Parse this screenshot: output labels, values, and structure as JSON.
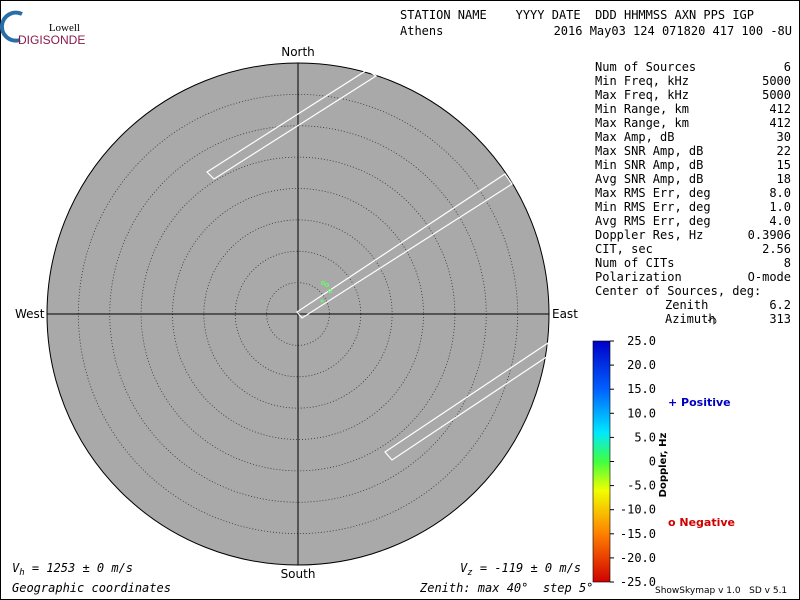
{
  "logo": {
    "top": "Lowell",
    "bottom": "DIGISONDE"
  },
  "header": {
    "fields": "STATION NAME    YYYY DATE  DDD HHMMSS AXN PPS IGP",
    "station": "Athens",
    "values": "2016 May03 124 071820 417 100 -8U"
  },
  "directions": {
    "north": "North",
    "south": "South",
    "west": "West",
    "east": "East"
  },
  "stats": {
    "rows": [
      [
        "Num of Sources",
        "6"
      ],
      [
        "Min Freq, kHz",
        "5000"
      ],
      [
        "Max Freq, kHz",
        "5000"
      ],
      [
        "Min Range, km",
        "412"
      ],
      [
        "Max Range, km",
        "412"
      ],
      [
        "Max Amp, dB",
        "30"
      ],
      [
        "Max SNR Amp, dB",
        "22"
      ],
      [
        "Min SNR Amp, dB",
        "15"
      ],
      [
        "Avg SNR Amp, dB",
        "18"
      ],
      [
        "Max RMS Err, deg",
        "8.0"
      ],
      [
        "Min RMS Err, deg",
        "1.0"
      ],
      [
        "Avg RMS Err, deg",
        "4.0"
      ],
      [
        "Doppler Res, Hz",
        "0.3906"
      ],
      [
        "CIT, sec",
        "2.56"
      ],
      [
        "Num of CITs",
        "8"
      ],
      [
        "Polarization",
        "O-mode"
      ]
    ],
    "center_heading": "Center of Sources, deg:",
    "center_rows": [
      [
        "Zenith",
        "6.2"
      ],
      [
        "Azimuth",
        "313"
      ]
    ]
  },
  "colorbar": {
    "title": "Doppler, Hz",
    "labels": [
      "25.0",
      "20.0",
      "15.0",
      "10.0",
      "5.0",
      "0",
      "-5.0",
      "-10.0",
      "-15.0",
      "-20.0",
      "-25.0"
    ]
  },
  "legend": {
    "positive": "+ Positive",
    "negative": "o Negative"
  },
  "footer": {
    "vh": {
      "symbol": "V",
      "subscript": "h",
      "text": " = 1253 ± 0 m/s"
    },
    "vz": {
      "symbol": "V",
      "subscript": "z",
      "text": " = -119 ± 0 m/s"
    },
    "coordinates": "Geographic coordinates",
    "zenith": "Zenith: max 40°  step 5°",
    "version": "ShowSkymap v 1.0   SD v 5.1"
  }
}
